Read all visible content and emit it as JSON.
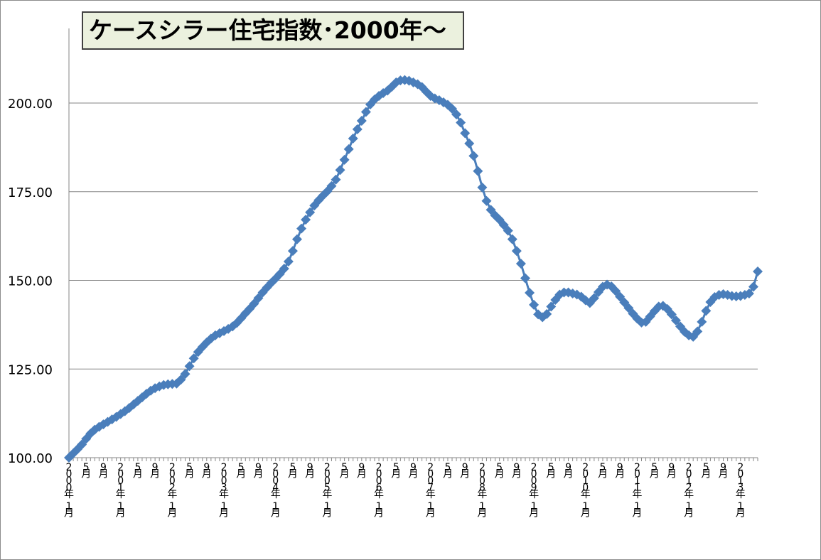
{
  "chart_data": {
    "type": "line",
    "title": "ケースシラー住宅指数･2000年～",
    "xlabel": "",
    "ylabel": "",
    "ylim": [
      100,
      210
    ],
    "y_ticks": [
      "100.00",
      "125.00",
      "150.00",
      "175.00",
      "200.00"
    ],
    "y_tick_values": [
      100,
      125,
      150,
      175,
      200
    ],
    "grid": true,
    "legend": "none",
    "x_tick_labels": [
      {
        "index": 0,
        "label": "2000年1月"
      },
      {
        "index": 4,
        "label": "5月"
      },
      {
        "index": 8,
        "label": "9月"
      },
      {
        "index": 12,
        "label": "2001年1月"
      },
      {
        "index": 16,
        "label": "5月"
      },
      {
        "index": 20,
        "label": "9月"
      },
      {
        "index": 24,
        "label": "2002年1月"
      },
      {
        "index": 28,
        "label": "5月"
      },
      {
        "index": 32,
        "label": "9月"
      },
      {
        "index": 36,
        "label": "2003年1月"
      },
      {
        "index": 40,
        "label": "5月"
      },
      {
        "index": 44,
        "label": "9月"
      },
      {
        "index": 48,
        "label": "2004年1月"
      },
      {
        "index": 52,
        "label": "5月"
      },
      {
        "index": 56,
        "label": "9月"
      },
      {
        "index": 60,
        "label": "2005年1月"
      },
      {
        "index": 64,
        "label": "5月"
      },
      {
        "index": 68,
        "label": "9月"
      },
      {
        "index": 72,
        "label": "2006年1月"
      },
      {
        "index": 76,
        "label": "5月"
      },
      {
        "index": 80,
        "label": "9月"
      },
      {
        "index": 84,
        "label": "2007年1月"
      },
      {
        "index": 88,
        "label": "5月"
      },
      {
        "index": 92,
        "label": "9月"
      },
      {
        "index": 96,
        "label": "2008年1月"
      },
      {
        "index": 100,
        "label": "5月"
      },
      {
        "index": 104,
        "label": "9月"
      },
      {
        "index": 108,
        "label": "2009年1月"
      },
      {
        "index": 112,
        "label": "5月"
      },
      {
        "index": 116,
        "label": "9月"
      },
      {
        "index": 120,
        "label": "2010年1月"
      },
      {
        "index": 124,
        "label": "5月"
      },
      {
        "index": 128,
        "label": "9月"
      },
      {
        "index": 132,
        "label": "2011年1月"
      },
      {
        "index": 136,
        "label": "5月"
      },
      {
        "index": 140,
        "label": "9月"
      },
      {
        "index": 144,
        "label": "2012年1月"
      },
      {
        "index": 148,
        "label": "5月"
      },
      {
        "index": 152,
        "label": "9月"
      },
      {
        "index": 156,
        "label": "2013年1月"
      }
    ],
    "series": [
      {
        "color": "#4a7ebb",
        "marker": "diamond",
        "start": "2000年1月",
        "frequency": "monthly",
        "values": [
          100.0,
          101.2,
          102.4,
          103.7,
          105.3,
          106.8,
          107.9,
          108.7,
          109.4,
          110.1,
          110.8,
          111.5,
          112.3,
          113.1,
          114.0,
          115.0,
          116.0,
          117.0,
          118.0,
          118.9,
          119.6,
          120.1,
          120.5,
          120.7,
          120.8,
          120.9,
          122.0,
          123.6,
          125.8,
          128.0,
          129.8,
          131.2,
          132.5,
          133.6,
          134.5,
          135.1,
          135.7,
          136.3,
          137.0,
          138.0,
          139.3,
          140.7,
          142.0,
          143.4,
          145.0,
          146.6,
          148.0,
          149.3,
          150.5,
          151.8,
          153.3,
          155.3,
          158.3,
          161.6,
          164.6,
          167.1,
          169.2,
          171.1,
          172.6,
          173.9,
          175.1,
          176.6,
          178.4,
          181.1,
          184.0,
          187.0,
          190.0,
          192.6,
          195.0,
          197.5,
          199.6,
          201.0,
          202.0,
          202.8,
          203.5,
          204.6,
          205.8,
          206.4,
          206.5,
          206.3,
          205.8,
          205.3,
          204.5,
          203.2,
          202.0,
          201.3,
          200.8,
          200.2,
          199.5,
          198.4,
          196.8,
          194.5,
          191.5,
          188.6,
          185.1,
          180.8,
          176.2,
          172.4,
          169.9,
          168.3,
          167.1,
          165.6,
          164.0,
          161.6,
          158.3,
          154.7,
          150.6,
          146.5,
          143.1,
          140.4,
          139.6,
          140.5,
          142.6,
          144.5,
          146.0,
          146.6,
          146.6,
          146.3,
          146.0,
          145.4,
          144.4,
          143.6,
          145.0,
          146.7,
          148.2,
          148.8,
          148.3,
          147.0,
          145.4,
          143.8,
          142.2,
          140.6,
          139.2,
          138.1,
          138.3,
          139.8,
          141.3,
          142.6,
          142.8,
          141.9,
          140.4,
          138.7,
          137.0,
          135.5,
          134.5,
          134.1,
          135.6,
          138.3,
          141.4,
          143.9,
          145.3,
          145.9,
          146.1,
          145.9,
          145.6,
          145.5,
          145.6,
          145.9,
          146.3,
          148.2,
          152.5
        ]
      }
    ]
  }
}
